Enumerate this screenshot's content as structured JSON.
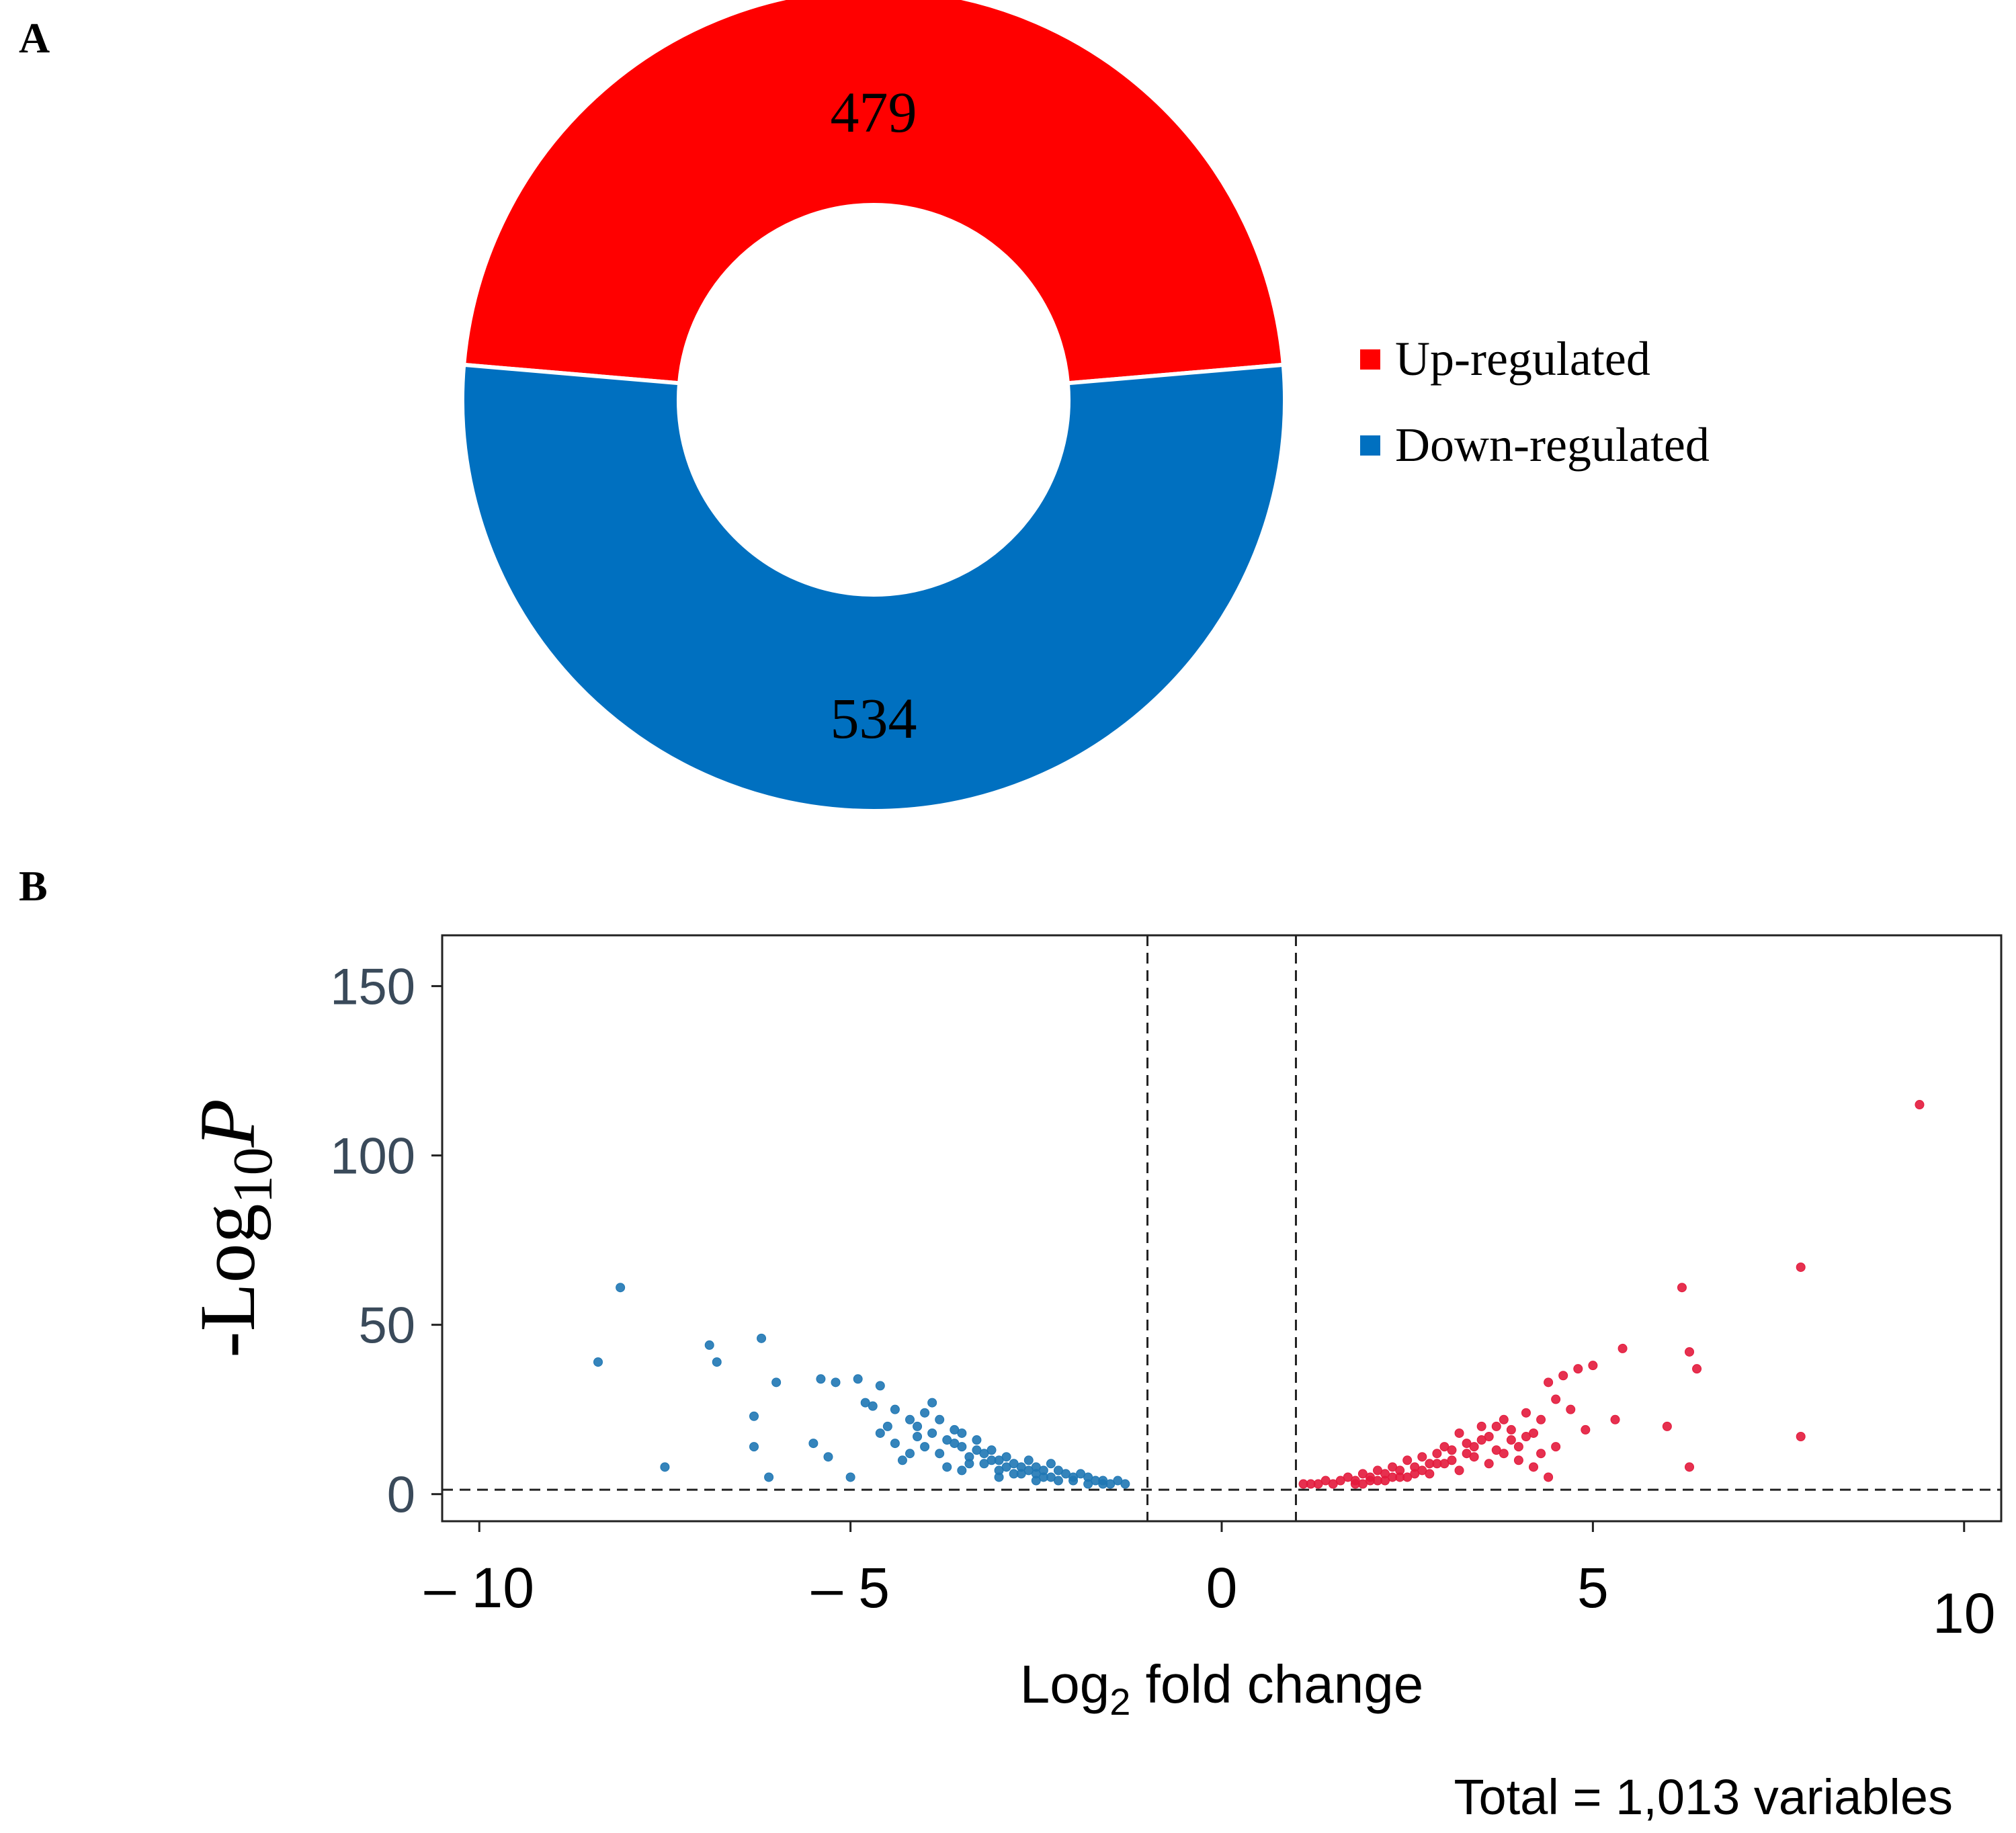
{
  "chart_data": [
    {
      "type": "pie",
      "panel": "A",
      "variant": "donut",
      "segments": [
        {
          "name": "Up-regulated",
          "value": 479,
          "color": "#ff0000"
        },
        {
          "name": "Down-regulated",
          "value": 534,
          "color": "#0070c0"
        }
      ],
      "legend": [
        "Up-regulated",
        "Down-regulated"
      ],
      "legend_position": "right"
    },
    {
      "type": "scatter",
      "panel": "B",
      "title": "",
      "xlabel": "Log2 fold change",
      "ylabel": "-Log10P",
      "xlim": [
        -10.5,
        10.5
      ],
      "ylim": [
        -8,
        165
      ],
      "xticks": [
        -10,
        -5,
        0,
        5,
        10
      ],
      "xtick_labels": [
        "– 10",
        "– 5",
        "0",
        "5",
        "10"
      ],
      "yticks": [
        0,
        50,
        100,
        150
      ],
      "ytick_labels": [
        "0",
        "50",
        "100",
        "150"
      ],
      "thresholds": {
        "x": [
          -1,
          1
        ],
        "y": 1.3
      },
      "caption": "Total = 1,013 variables",
      "series": [
        {
          "name": "Down-regulated",
          "color": "#1f77b4",
          "points": [
            [
              -8.4,
              39
            ],
            [
              -8.1,
              61
            ],
            [
              -7.5,
              8
            ],
            [
              -6.9,
              44
            ],
            [
              -6.8,
              39
            ],
            [
              -6.2,
              46
            ],
            [
              -6.3,
              23
            ],
            [
              -6.3,
              14
            ],
            [
              -6.1,
              5
            ],
            [
              -6.0,
              33
            ],
            [
              -5.5,
              15
            ],
            [
              -5.4,
              34
            ],
            [
              -5.2,
              33
            ],
            [
              -5.3,
              11
            ],
            [
              -5.0,
              5
            ],
            [
              -4.9,
              34
            ],
            [
              -4.8,
              27
            ],
            [
              -4.7,
              26
            ],
            [
              -4.6,
              32
            ],
            [
              -4.5,
              20
            ],
            [
              -4.4,
              15
            ],
            [
              -4.3,
              10
            ],
            [
              -4.2,
              22
            ],
            [
              -4.1,
              17
            ],
            [
              -4.0,
              24
            ],
            [
              -3.9,
              27
            ],
            [
              -3.8,
              12
            ],
            [
              -3.7,
              8
            ],
            [
              -3.6,
              19
            ],
            [
              -3.5,
              14
            ],
            [
              -3.4,
              11
            ],
            [
              -3.3,
              16
            ],
            [
              -3.2,
              9
            ],
            [
              -3.1,
              13
            ],
            [
              -3.0,
              7
            ],
            [
              -2.9,
              11
            ],
            [
              -2.8,
              9
            ],
            [
              -2.7,
              6
            ],
            [
              -2.6,
              10
            ],
            [
              -2.5,
              8
            ],
            [
              -2.4,
              5
            ],
            [
              -2.3,
              9
            ],
            [
              -2.2,
              7
            ],
            [
              -2.1,
              6
            ],
            [
              -2.0,
              4
            ],
            [
              -1.9,
              6
            ],
            [
              -1.8,
              5
            ],
            [
              -1.7,
              4
            ],
            [
              -1.6,
              4
            ],
            [
              -1.5,
              3
            ],
            [
              -1.4,
              4
            ],
            [
              -1.3,
              3
            ],
            [
              -4.1,
              20
            ],
            [
              -3.9,
              18
            ],
            [
              -3.8,
              22
            ],
            [
              -3.6,
              15
            ],
            [
              -3.5,
              18
            ],
            [
              -3.3,
              13
            ],
            [
              -3.1,
              10
            ],
            [
              -2.9,
              8
            ],
            [
              -2.7,
              8
            ],
            [
              -2.5,
              6
            ],
            [
              -2.3,
              5
            ],
            [
              -4.4,
              25
            ],
            [
              -4.2,
              12
            ],
            [
              -3.7,
              16
            ],
            [
              -3.4,
              9
            ],
            [
              -3.2,
              12
            ],
            [
              -3.0,
              10
            ],
            [
              -2.8,
              6
            ],
            [
              -2.6,
              7
            ],
            [
              -2.4,
              7
            ],
            [
              -2.2,
              4
            ],
            [
              -2.0,
              5
            ],
            [
              -1.8,
              3
            ],
            [
              -1.6,
              3
            ],
            [
              -4.6,
              18
            ],
            [
              -4.0,
              14
            ],
            [
              -3.5,
              7
            ],
            [
              -3.0,
              5
            ],
            [
              -2.5,
              4
            ]
          ]
        },
        {
          "name": "Up-regulated",
          "color": "#e31a3c",
          "points": [
            [
              9.4,
              115
            ],
            [
              7.8,
              67
            ],
            [
              7.8,
              17
            ],
            [
              6.3,
              42
            ],
            [
              6.4,
              37
            ],
            [
              6.2,
              61
            ],
            [
              6.3,
              8
            ],
            [
              6.0,
              20
            ],
            [
              5.4,
              43
            ],
            [
              5.3,
              22
            ],
            [
              5.0,
              38
            ],
            [
              4.9,
              19
            ],
            [
              4.8,
              37
            ],
            [
              4.7,
              25
            ],
            [
              4.6,
              35
            ],
            [
              4.5,
              28
            ],
            [
              4.4,
              33
            ],
            [
              4.3,
              22
            ],
            [
              4.2,
              18
            ],
            [
              4.1,
              24
            ],
            [
              4.0,
              14
            ],
            [
              3.9,
              19
            ],
            [
              3.8,
              22
            ],
            [
              3.7,
              13
            ],
            [
              3.6,
              17
            ],
            [
              3.5,
              20
            ],
            [
              3.4,
              11
            ],
            [
              3.3,
              15
            ],
            [
              3.2,
              18
            ],
            [
              3.1,
              10
            ],
            [
              3.0,
              14
            ],
            [
              2.9,
              12
            ],
            [
              2.8,
              9
            ],
            [
              2.7,
              11
            ],
            [
              2.6,
              8
            ],
            [
              2.5,
              10
            ],
            [
              2.4,
              7
            ],
            [
              2.3,
              8
            ],
            [
              2.2,
              6
            ],
            [
              2.1,
              7
            ],
            [
              2.0,
              5
            ],
            [
              1.9,
              6
            ],
            [
              1.8,
              4
            ],
            [
              1.7,
              5
            ],
            [
              1.6,
              4
            ],
            [
              1.5,
              3
            ],
            [
              1.4,
              4
            ],
            [
              1.3,
              3
            ],
            [
              1.2,
              3
            ],
            [
              1.1,
              3
            ],
            [
              4.4,
              5
            ],
            [
              4.2,
              8
            ],
            [
              4.0,
              10
            ],
            [
              3.8,
              12
            ],
            [
              3.6,
              9
            ],
            [
              3.4,
              14
            ],
            [
              3.2,
              7
            ],
            [
              3.0,
              9
            ],
            [
              2.8,
              6
            ],
            [
              2.6,
              6
            ],
            [
              2.4,
              5
            ],
            [
              2.2,
              4
            ],
            [
              2.0,
              4
            ],
            [
              1.8,
              3
            ],
            [
              3.9,
              16
            ],
            [
              3.7,
              20
            ],
            [
              3.5,
              16
            ],
            [
              3.3,
              12
            ],
            [
              3.1,
              13
            ],
            [
              2.9,
              9
            ],
            [
              2.7,
              7
            ],
            [
              2.5,
              5
            ],
            [
              2.3,
              5
            ],
            [
              2.1,
              4
            ],
            [
              1.9,
              3
            ],
            [
              4.1,
              17
            ],
            [
              4.3,
              12
            ],
            [
              4.5,
              14
            ]
          ]
        }
      ]
    }
  ],
  "panels": {
    "a": "A",
    "b": "B"
  },
  "donut_labels": {
    "up": "479",
    "down": "534"
  },
  "axis_titles": {
    "x_main": "Log",
    "x_sub": "2",
    "x_rest": " fold change",
    "y_main": "-Log",
    "y_sub": "10",
    "y_rest": "P"
  }
}
